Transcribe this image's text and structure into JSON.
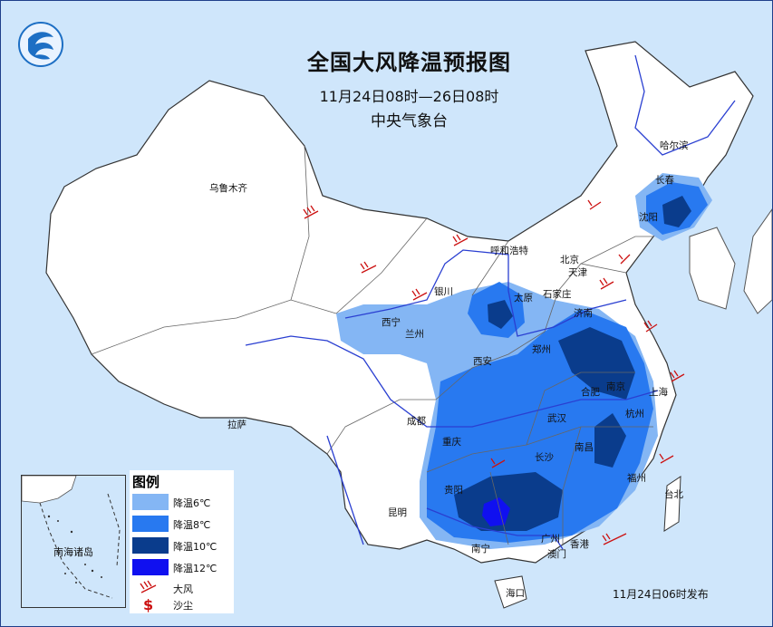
{
  "title": {
    "main": "全国大风降温预报图",
    "period": "11月24日08时—26日08时",
    "issuer": "中央气象台"
  },
  "issued": "11月24日06时发布",
  "legend": {
    "title": "图例",
    "items": [
      {
        "label": "降温6℃",
        "color": "#84b6f4"
      },
      {
        "label": "降温8℃",
        "color": "#2879f0"
      },
      {
        "label": "降温10℃",
        "color": "#0a3c8c"
      },
      {
        "label": "降温12℃",
        "color": "#1010f0"
      },
      {
        "label": "大风",
        "icon": "wind-barb-icon"
      },
      {
        "label": "沙尘",
        "icon": "dust-icon"
      }
    ]
  },
  "inset": {
    "label": "南海诸岛"
  },
  "cities": [
    "乌鲁木齐",
    "哈尔滨",
    "长春",
    "沈阳",
    "呼和浩特",
    "北京",
    "天津",
    "石家庄",
    "太原",
    "银川",
    "西宁",
    "兰州",
    "济南",
    "郑州",
    "西安",
    "合肥",
    "南京",
    "上海",
    "杭州",
    "成都",
    "武汉",
    "重庆",
    "长沙",
    "南昌",
    "福州",
    "台北",
    "贵阳",
    "昆明",
    "南宁",
    "广州",
    "香港",
    "澳门",
    "海口",
    "拉萨"
  ],
  "colors": {
    "sea": "#cfe6fb",
    "land": "#ffffff",
    "river": "#2a3fd1",
    "border": "#555555",
    "barb": "#cc1111"
  }
}
